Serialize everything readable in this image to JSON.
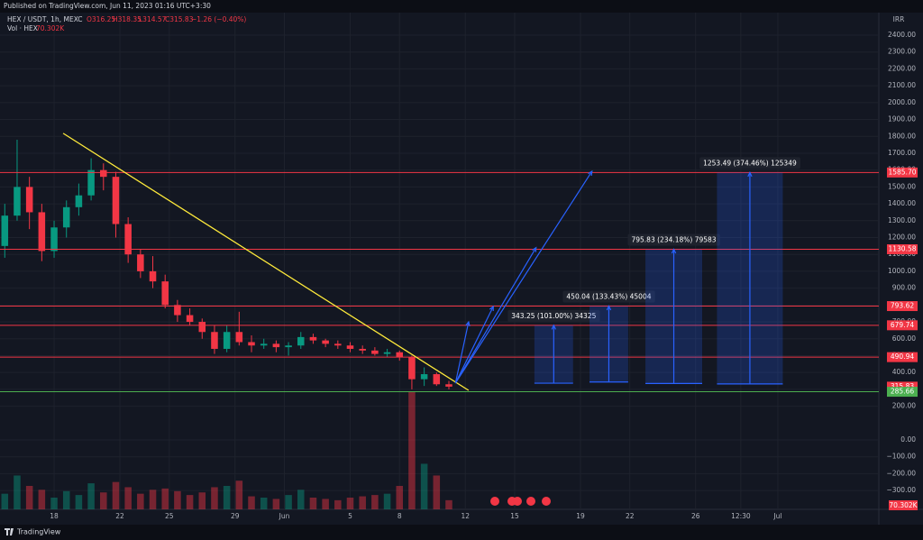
{
  "header": {
    "published": "Published on TradingView.com, Jun 11, 2023 01:16 UTC+3:30",
    "symbol": "HEX / USDT, 1h, MEXC",
    "ohlc": [
      "O316.25",
      "H318.35",
      "L314.57",
      "C315.83",
      "−1.26 (−0.40%)"
    ],
    "volume_name": "Vol · HEX",
    "volume_last": "70.302K",
    "currency": "IRR",
    "brand": "TradingView"
  },
  "chart_data": {
    "type": "candlestick",
    "xlim": [
      14.71,
      68.14
    ],
    "ylim": [
      -411.6,
      2501.6
    ],
    "xticks": [
      18,
      22,
      25,
      29,
      {
        "value": 32,
        "label": "Jun"
      },
      {
        "value": 36,
        "label": "5"
      },
      {
        "value": 39,
        "label": "8"
      },
      {
        "value": 43,
        "label": "12"
      },
      {
        "value": 46,
        "label": "15"
      },
      {
        "value": 50,
        "label": "19"
      },
      {
        "value": 53,
        "label": "22"
      },
      {
        "value": 57,
        "label": "26"
      },
      {
        "value": 59.75,
        "label": "12:30"
      },
      {
        "value": 62,
        "label": "Jul"
      }
    ],
    "yticks": [
      {
        "value": 2400,
        "label": "2400.00"
      },
      {
        "value": 2300,
        "label": "2300.00"
      },
      {
        "value": 2200,
        "label": "2200.00"
      },
      {
        "value": 2100,
        "label": "2100.00"
      },
      {
        "value": 2000,
        "label": "2000.00"
      },
      {
        "value": 1900,
        "label": "1900.00"
      },
      {
        "value": 1800,
        "label": "1800.00"
      },
      {
        "value": 1700,
        "label": "1700.00"
      },
      {
        "value": 1600,
        "label": "1600.00"
      },
      {
        "value": 1500,
        "label": "1500.00"
      },
      {
        "value": 1400,
        "label": "1400.00"
      },
      {
        "value": 1300,
        "label": "1300.00"
      },
      {
        "value": 1200,
        "label": "1200.00"
      },
      {
        "value": 1100,
        "label": "1100.00"
      },
      {
        "value": 1000,
        "label": "1000.00"
      },
      {
        "value": 900,
        "label": "900.00"
      },
      {
        "value": 800,
        "label": "800.00"
      },
      {
        "value": 700,
        "label": "700.00"
      },
      {
        "value": 600,
        "label": "600.00"
      },
      {
        "value": 500,
        "label": "500.00"
      },
      {
        "value": 400,
        "label": "400.00"
      },
      {
        "value": 300,
        "label": "300.00"
      },
      {
        "value": 200,
        "label": "200.00"
      },
      {
        "value": 0,
        "label": "0.00"
      },
      {
        "value": -100,
        "label": "−100.00"
      },
      {
        "value": -200,
        "label": "−200.00"
      },
      {
        "value": -300,
        "label": "−300.00"
      }
    ],
    "grid": true,
    "up_color": "#089981",
    "down_color": "#f23645",
    "x": [
      15,
      15.75,
      16.5,
      17.25,
      18,
      18.75,
      19.5,
      20.25,
      21,
      21.75,
      22.5,
      23.25,
      24,
      24.75,
      25.5,
      26.25,
      27,
      27.75,
      28.5,
      29.25,
      30,
      30.75,
      31.5,
      32.25,
      33,
      33.75,
      34.5,
      35.25,
      36,
      36.75,
      37.5,
      38.25,
      39,
      39.75,
      40.5,
      41.25,
      42
    ],
    "candles": [
      [
        1150,
        1400,
        1080,
        1330
      ],
      [
        1330,
        1780,
        1300,
        1500
      ],
      [
        1500,
        1560,
        1250,
        1350
      ],
      [
        1350,
        1400,
        1060,
        1120
      ],
      [
        1120,
        1300,
        1080,
        1260
      ],
      [
        1260,
        1420,
        1200,
        1380
      ],
      [
        1380,
        1520,
        1330,
        1450
      ],
      [
        1450,
        1670,
        1420,
        1600
      ],
      [
        1600,
        1640,
        1480,
        1560
      ],
      [
        1560,
        1590,
        1200,
        1280
      ],
      [
        1280,
        1320,
        1050,
        1100
      ],
      [
        1100,
        1130,
        960,
        1000
      ],
      [
        1000,
        1090,
        900,
        940
      ],
      [
        940,
        980,
        780,
        800
      ],
      [
        800,
        830,
        700,
        740
      ],
      [
        740,
        780,
        680,
        700
      ],
      [
        700,
        720,
        600,
        640
      ],
      [
        640,
        680,
        510,
        540
      ],
      [
        540,
        680,
        520,
        640
      ],
      [
        640,
        760,
        560,
        580
      ],
      [
        580,
        620,
        520,
        560
      ],
      [
        560,
        600,
        540,
        570
      ],
      [
        570,
        590,
        520,
        550
      ],
      [
        550,
        580,
        500,
        560
      ],
      [
        560,
        640,
        540,
        610
      ],
      [
        610,
        630,
        570,
        590
      ],
      [
        590,
        600,
        550,
        570
      ],
      [
        570,
        590,
        540,
        560
      ],
      [
        560,
        580,
        520,
        540
      ],
      [
        540,
        560,
        510,
        530
      ],
      [
        530,
        550,
        500,
        510
      ],
      [
        510,
        540,
        490,
        520
      ],
      [
        520,
        530,
        470,
        490
      ],
      [
        490,
        500,
        300,
        360
      ],
      [
        360,
        430,
        320,
        390
      ],
      [
        390,
        400,
        320,
        330
      ],
      [
        330,
        350,
        300,
        316
      ]
    ],
    "volume": [
      120,
      260,
      180,
      150,
      90,
      140,
      110,
      200,
      130,
      210,
      170,
      120,
      150,
      160,
      140,
      110,
      130,
      170,
      180,
      220,
      100,
      90,
      80,
      110,
      150,
      90,
      80,
      70,
      90,
      100,
      110,
      120,
      180,
      900,
      350,
      260,
      70.302
    ],
    "levels": [
      {
        "value": 1585.7,
        "label": "1585.70",
        "color": "#f23645",
        "line": true
      },
      {
        "value": 1130.58,
        "label": "1130.58",
        "color": "#f23645",
        "line": true
      },
      {
        "value": 793.62,
        "label": "793.62",
        "color": "#f23645",
        "line": true
      },
      {
        "value": 679.74,
        "label": "679.74",
        "color": "#f23645",
        "line": true
      },
      {
        "value": 490.94,
        "label": "490.94",
        "color": "#f23645",
        "line": true
      },
      {
        "value": 315.83,
        "label": "315.83",
        "color": "#f23645",
        "line": false
      },
      {
        "value": 285.66,
        "label": "285.66",
        "color": "#4caf50",
        "line": true
      }
    ],
    "trendline": {
      "from": [
        18.55,
        1818
      ],
      "to": [
        43.2,
        294
      ],
      "color": "#ffeb3b"
    },
    "arrow_color": "#2962ff",
    "arrows": [
      {
        "from": [
          42.4,
          337
        ],
        "to": [
          43.2,
          700
        ]
      },
      {
        "from": [
          42.4,
          337
        ],
        "to": [
          44.7,
          791
        ]
      },
      {
        "from": [
          42.4,
          337
        ],
        "to": [
          47.3,
          1140
        ]
      },
      {
        "from": [
          42.4,
          337
        ],
        "to": [
          50.7,
          1593
        ]
      }
    ],
    "projections": [
      {
        "x0": 47.2,
        "x1": 49.55,
        "from": 336.49,
        "to": 679.74,
        "label": "343.25 (101.00%) 34325"
      },
      {
        "x0": 50.55,
        "x1": 52.9,
        "from": 343.58,
        "to": 793.62,
        "label": "450.04 (133.43%) 45004"
      },
      {
        "x0": 53.95,
        "x1": 57.4,
        "from": 334.75,
        "to": 1130.58,
        "label": "795.83 (234.18%) 79583"
      },
      {
        "x0": 58.3,
        "x1": 62.3,
        "from": 332.21,
        "to": 1585.7,
        "label": "1253.49 (374.46%) 125349"
      }
    ]
  }
}
